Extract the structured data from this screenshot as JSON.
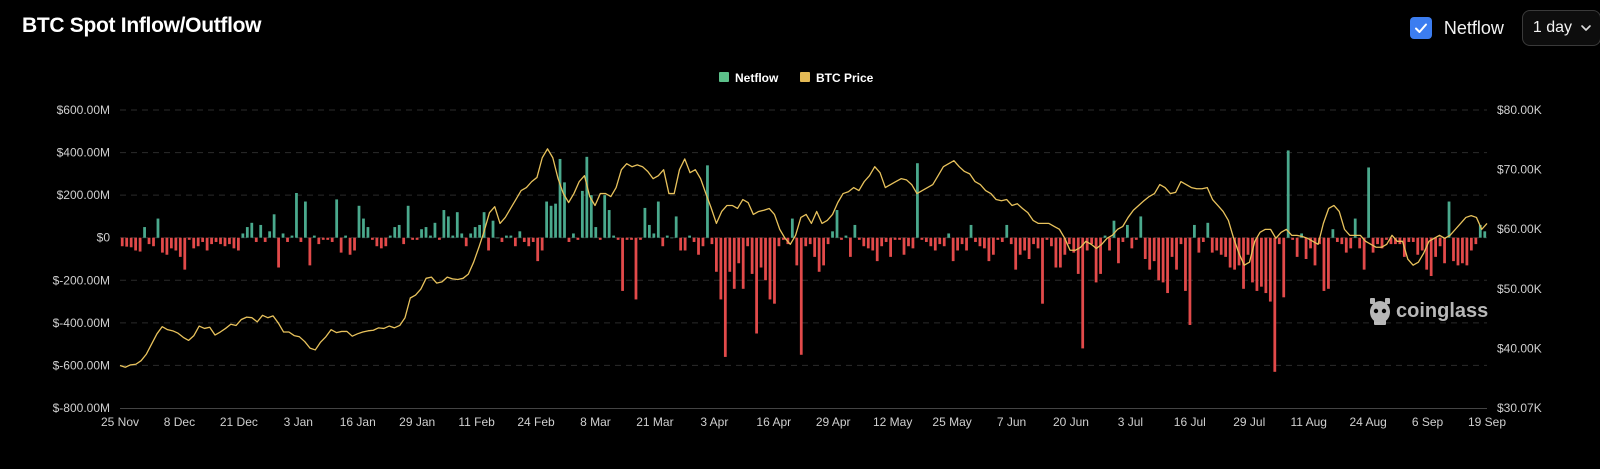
{
  "page": {
    "title": "BTC Spot Inflow/Outflow"
  },
  "controls": {
    "netflow_checked": true,
    "netflow_label": "Netflow",
    "interval_value": "1 day",
    "checkbox_icon": "check-icon",
    "dropdown_icon": "chevron-down-icon"
  },
  "colors": {
    "inflow": "#4aa98d",
    "outflow": "#e24a4a",
    "price": "#e8c25c",
    "legend_netflow": "#5cc08a",
    "legend_price": "#e3b955",
    "grid": "#2b2b2b",
    "axis_text": "#cfcfcf"
  },
  "watermark": "coinglass",
  "chart_data": {
    "type": "bar",
    "legend": [
      "Netflow",
      "BTC Price"
    ],
    "legend_position": "top-center",
    "x_tick_labels": [
      "25 Nov",
      "8 Dec",
      "21 Dec",
      "3 Jan",
      "16 Jan",
      "29 Jan",
      "11 Feb",
      "24 Feb",
      "8 Mar",
      "21 Mar",
      "3 Apr",
      "16 Apr",
      "29 Apr",
      "12 May",
      "25 May",
      "7 Jun",
      "20 Jun",
      "3 Jul",
      "16 Jul",
      "29 Jul",
      "11 Aug",
      "24 Aug",
      "6 Sep",
      "19 Sep"
    ],
    "y_left_ticks": [
      "$600.00M",
      "$400.00M",
      "$200.00M",
      "$0",
      "$-200.00M",
      "$-400.00M",
      "$-600.00M",
      "$-800.00M"
    ],
    "y_left_range": [
      -800,
      600
    ],
    "y_right_ticks": [
      "$80.00K",
      "$70.00K",
      "$60.00K",
      "$50.00K",
      "$40.00K",
      "$30.07K"
    ],
    "y_right_range": [
      30.07,
      80
    ],
    "grid": true,
    "netflow_values_musd": [
      -40,
      -42,
      -45,
      -60,
      -65,
      50,
      -30,
      -40,
      90,
      -70,
      -80,
      -50,
      -60,
      -90,
      -150,
      -10,
      -50,
      -40,
      -20,
      -60,
      -30,
      -20,
      -30,
      -40,
      -30,
      -50,
      -60,
      20,
      50,
      70,
      -20,
      60,
      -20,
      30,
      110,
      -140,
      20,
      -20,
      10,
      210,
      -20,
      170,
      -130,
      10,
      -30,
      -10,
      -10,
      -20,
      180,
      -70,
      10,
      -80,
      -60,
      150,
      90,
      50,
      -10,
      -40,
      -50,
      -40,
      10,
      50,
      60,
      -30,
      150,
      -10,
      -10,
      40,
      50,
      10,
      70,
      -10,
      130,
      100,
      10,
      120,
      20,
      -40,
      20,
      50,
      60,
      120,
      -60,
      80,
      0,
      -20,
      10,
      10,
      -40,
      30,
      -20,
      -40,
      -20,
      -110,
      -60,
      170,
      150,
      160,
      370,
      260,
      -20,
      20,
      -10,
      220,
      380,
      200,
      50,
      -10,
      200,
      130,
      10,
      -10,
      -250,
      -10,
      -10,
      -290,
      -10,
      140,
      60,
      20,
      170,
      -40,
      10,
      0,
      100,
      -60,
      -60,
      10,
      -20,
      -80,
      -40,
      340,
      -30,
      -160,
      -290,
      -560,
      -160,
      -240,
      -120,
      -240,
      -40,
      -170,
      -450,
      -140,
      -200,
      -290,
      -310,
      -40,
      -10,
      -30,
      90,
      -130,
      -550,
      -40,
      -30,
      -90,
      -160,
      -130,
      -30,
      30,
      130,
      -10,
      10,
      -90,
      60,
      -10,
      -40,
      -50,
      -60,
      -110,
      -40,
      -20,
      -90,
      -10,
      -10,
      -80,
      -40,
      -50,
      350,
      -10,
      -20,
      -40,
      -60,
      -30,
      -40,
      20,
      -110,
      -60,
      -30,
      -60,
      60,
      -20,
      -40,
      -50,
      -110,
      -80,
      -10,
      -20,
      60,
      -30,
      -150,
      -80,
      -60,
      -100,
      -30,
      -50,
      -310,
      -10,
      -40,
      -140,
      -140,
      -80,
      -30,
      -70,
      -170,
      -520,
      -60,
      -30,
      -210,
      -170,
      10,
      -60,
      80,
      -120,
      -20,
      60,
      -50,
      -10,
      100,
      -100,
      -150,
      -110,
      -200,
      -210,
      -260,
      -90,
      -150,
      -30,
      -250,
      -410,
      60,
      -70,
      -20,
      70,
      -70,
      -60,
      -80,
      -90,
      -140,
      -150,
      -130,
      -240,
      -80,
      -210,
      -250,
      -230,
      -260,
      -300,
      -630,
      -30,
      -280,
      410,
      -10,
      -90,
      20,
      -100,
      -50,
      -130,
      -30,
      -250,
      -240,
      40,
      -20,
      -30,
      -70,
      -50,
      90,
      -50,
      -150,
      330,
      -70,
      -30,
      -50,
      -10,
      -30,
      -30,
      -30,
      -90,
      -20,
      -20,
      -80,
      -60,
      -150,
      -180,
      -90,
      -40,
      -120,
      170,
      -110,
      -130,
      -120,
      -130,
      -60,
      -30,
      60,
      30
    ],
    "btc_price_k": [
      37.2,
      36.9,
      37.3,
      37.4,
      38.0,
      39.1,
      40.8,
      42.5,
      43.7,
      43.2,
      43.0,
      42.6,
      41.9,
      41.4,
      42.2,
      43.8,
      43.4,
      43.6,
      42.3,
      42.8,
      43.4,
      44.1,
      43.9,
      44.9,
      45.3,
      45.2,
      44.5,
      45.6,
      45.2,
      45.5,
      44.3,
      42.8,
      42.8,
      42.2,
      42.0,
      41.2,
      40.1,
      39.8,
      41.1,
      42.0,
      43.2,
      42.7,
      42.9,
      42.9,
      42.1,
      42.5,
      42.8,
      43.0,
      43.1,
      43.5,
      43.4,
      43.8,
      43.5,
      43.9,
      45.2,
      48.5,
      49.0,
      50.0,
      51.8,
      52.0,
      51.0,
      51.2,
      52.0,
      51.7,
      51.6,
      51.8,
      52.5,
      54.5,
      57.0,
      59.7,
      62.8,
      63.8,
      61.0,
      62.0,
      63.5,
      65.0,
      66.5,
      67.0,
      68.0,
      68.7,
      72.0,
      73.5,
      72.0,
      68.5,
      66.0,
      64.5,
      66.0,
      68.0,
      69.0,
      65.5,
      64.0,
      66.0,
      66.0,
      65.5,
      67.0,
      70.0,
      71.0,
      70.5,
      70.8,
      70.5,
      69.7,
      68.5,
      69.0,
      70.0,
      66.0,
      66.0,
      70.0,
      71.8,
      69.5,
      70.0,
      68.5,
      66.0,
      63.6,
      61.0,
      63.0,
      64.0,
      64.0,
      63.5,
      65.0,
      64.5,
      62.5,
      63.0,
      63.2,
      63.5,
      62.5,
      60.0,
      58.5,
      57.5,
      59.0,
      62.0,
      62.5,
      61.0,
      63.0,
      61.0,
      61.5,
      62.5,
      64.5,
      66.0,
      66.3,
      67.0,
      66.5,
      68.0,
      69.0,
      70.5,
      69.5,
      67.0,
      67.5,
      68.0,
      68.5,
      68.3,
      67.5,
      66.0,
      66.5,
      67.0,
      67.5,
      69.0,
      70.5,
      71.0,
      71.5,
      70.5,
      69.7,
      69.3,
      68.0,
      67.5,
      66.5,
      66.0,
      65.0,
      64.8,
      65.0,
      64.0,
      64.3,
      63.5,
      62.8,
      61.5,
      61.0,
      61.0,
      61.0,
      60.5,
      60.0,
      58.5,
      56.5,
      56.5,
      57.0,
      58.0,
      57.5,
      56.8,
      57.5,
      58.5,
      59.0,
      60.0,
      60.5,
      62.0,
      63.2,
      64.0,
      64.8,
      65.5,
      66.0,
      67.5,
      67.0,
      66.0,
      66.2,
      68.0,
      67.5,
      67.0,
      66.8,
      66.8,
      67.0,
      65.0,
      64.0,
      63.0,
      61.5,
      58.5,
      56.0,
      54.0,
      54.5,
      58.0,
      59.5,
      60.0,
      60.0,
      58.5,
      59.5,
      60.0,
      59.0,
      59.0,
      58.8,
      58.5,
      58.0,
      57.5,
      61.0,
      63.5,
      64.0,
      63.0,
      60.0,
      59.0,
      59.0,
      59.0,
      58.0,
      57.5,
      57.0,
      57.0,
      57.5,
      59.0,
      58.0,
      58.0,
      55.0,
      54.0,
      54.5,
      56.0,
      58.0,
      58.5,
      59.0,
      58.5,
      59.0,
      60.0,
      61.0,
      62.0,
      62.3,
      62.0,
      60.0,
      61.0
    ]
  }
}
